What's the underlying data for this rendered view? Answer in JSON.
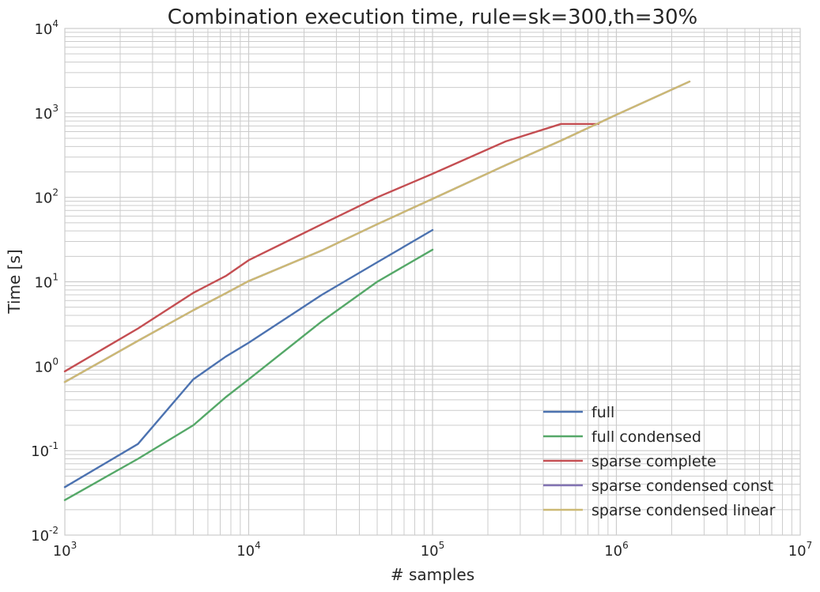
{
  "chart_data": {
    "type": "line",
    "title": "Combination execution time, rule=sk=300,th=30%",
    "xlabel": "# samples",
    "ylabel": "Time [s]",
    "xscale": "log",
    "yscale": "log",
    "xlim": [
      1000,
      10000000
    ],
    "ylim": [
      0.01,
      10000
    ],
    "grid": true,
    "legend_position": "lower-right",
    "x_ticks": [
      {
        "base": "10",
        "exp": "3",
        "value": 1000
      },
      {
        "base": "10",
        "exp": "4",
        "value": 10000
      },
      {
        "base": "10",
        "exp": "5",
        "value": 100000
      },
      {
        "base": "10",
        "exp": "6",
        "value": 1000000
      },
      {
        "base": "10",
        "exp": "7",
        "value": 10000000
      }
    ],
    "y_ticks": [
      {
        "base": "10",
        "exp": "-2",
        "value": 0.01
      },
      {
        "base": "10",
        "exp": "-1",
        "value": 0.1
      },
      {
        "base": "10",
        "exp": "0",
        "value": 1
      },
      {
        "base": "10",
        "exp": "1",
        "value": 10
      },
      {
        "base": "10",
        "exp": "2",
        "value": 100
      },
      {
        "base": "10",
        "exp": "3",
        "value": 1000
      },
      {
        "base": "10",
        "exp": "4",
        "value": 10000
      }
    ],
    "series": [
      {
        "name": "full",
        "color": "#4c72b0",
        "x": [
          1000,
          2500,
          5000,
          7500,
          10000,
          25000,
          50000,
          100000
        ],
        "y": [
          0.037,
          0.12,
          0.7,
          1.3,
          1.9,
          7.0,
          17.0,
          41.0
        ]
      },
      {
        "name": "full condensed",
        "color": "#55a868",
        "x": [
          1000,
          2500,
          5000,
          7500,
          10000,
          25000,
          50000,
          100000
        ],
        "y": [
          0.026,
          0.08,
          0.2,
          0.43,
          0.7,
          3.4,
          10.0,
          24.0
        ]
      },
      {
        "name": "sparse complete",
        "color": "#c44e52",
        "x": [
          1000,
          2500,
          5000,
          7500,
          10000,
          25000,
          50000,
          100000,
          250000,
          500000,
          800000
        ],
        "y": [
          0.87,
          2.8,
          7.4,
          11.7,
          18.0,
          48.0,
          100.0,
          190.0,
          460.0,
          740.0,
          740.0
        ]
      },
      {
        "name": "sparse condensed const",
        "color": "#8172b2",
        "x": [
          1000,
          2500,
          5000,
          7500,
          10000,
          25000,
          50000,
          100000,
          250000,
          500000,
          1000000,
          2500000
        ],
        "y": [
          0.65,
          2.0,
          4.6,
          7.3,
          10.2,
          23.5,
          48.0,
          96.0,
          240.0,
          470.0,
          950.0,
          2350.0
        ]
      },
      {
        "name": "sparse condensed linear",
        "color": "#ccb974",
        "x": [
          1000,
          2500,
          5000,
          7500,
          10000,
          25000,
          50000,
          100000,
          250000,
          500000,
          1000000,
          2500000
        ],
        "y": [
          0.65,
          2.0,
          4.6,
          7.3,
          10.2,
          23.5,
          48.0,
          96.0,
          240.0,
          470.0,
          950.0,
          2350.0
        ]
      }
    ]
  }
}
